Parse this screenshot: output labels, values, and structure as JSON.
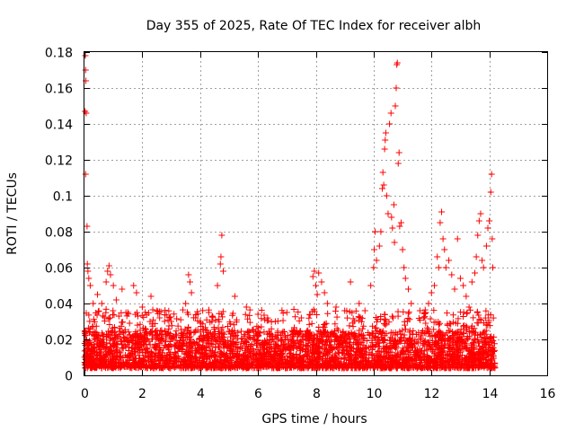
{
  "chart_data": {
    "type": "scatter",
    "title": "Day 355 of 2025, Rate Of TEC Index for receiver albh",
    "xlabel": "GPS time / hours",
    "ylabel": "ROTI / TECUs",
    "xlim": [
      0,
      16
    ],
    "ylim": [
      0,
      0.18
    ],
    "xticks": [
      0,
      2,
      4,
      6,
      8,
      10,
      12,
      14,
      16
    ],
    "xtick_labels": [
      "0",
      "2",
      "4",
      "6",
      "8",
      "10",
      "12",
      "14",
      "16"
    ],
    "yticks": [
      0,
      0.02,
      0.04,
      0.06,
      0.08,
      0.1,
      0.12,
      0.14,
      0.16,
      0.18
    ],
    "ytick_labels": [
      "0",
      "0.02",
      "0.04",
      "0.06",
      "0.08",
      "0.1",
      "0.12",
      "0.14",
      "0.16",
      "0.18"
    ],
    "grid": true,
    "marker": "+",
    "color": "#ff0000",
    "baseline": {
      "x_range": [
        0,
        14.2
      ],
      "typical_range": [
        0.004,
        0.025
      ],
      "point_density_per_hour": 260
    },
    "series": [
      {
        "name": "ROTI",
        "points": [
          [
            0.03,
            0.178
          ],
          [
            0.04,
            0.17
          ],
          [
            0.05,
            0.164
          ],
          [
            0.02,
            0.147
          ],
          [
            0.06,
            0.146
          ],
          [
            0.04,
            0.112
          ],
          [
            0.09,
            0.083
          ],
          [
            0.1,
            0.062
          ],
          [
            0.12,
            0.058
          ],
          [
            0.15,
            0.054
          ],
          [
            0.2,
            0.05
          ],
          [
            0.3,
            0.04
          ],
          [
            0.45,
            0.045
          ],
          [
            0.6,
            0.04
          ],
          [
            0.75,
            0.052
          ],
          [
            0.8,
            0.058
          ],
          [
            0.85,
            0.061
          ],
          [
            0.9,
            0.056
          ],
          [
            1.0,
            0.05
          ],
          [
            1.1,
            0.042
          ],
          [
            1.3,
            0.048
          ],
          [
            1.5,
            0.035
          ],
          [
            1.7,
            0.05
          ],
          [
            1.8,
            0.046
          ],
          [
            2.0,
            0.038
          ],
          [
            2.3,
            0.044
          ],
          [
            2.6,
            0.032
          ],
          [
            3.0,
            0.03
          ],
          [
            3.5,
            0.04
          ],
          [
            3.6,
            0.056
          ],
          [
            3.65,
            0.052
          ],
          [
            3.7,
            0.046
          ],
          [
            4.0,
            0.03
          ],
          [
            4.3,
            0.035
          ],
          [
            4.6,
            0.05
          ],
          [
            4.7,
            0.062
          ],
          [
            4.72,
            0.066
          ],
          [
            4.75,
            0.078
          ],
          [
            4.8,
            0.058
          ],
          [
            5.2,
            0.044
          ],
          [
            5.6,
            0.038
          ],
          [
            6.0,
            0.034
          ],
          [
            6.6,
            0.03
          ],
          [
            7.0,
            0.035
          ],
          [
            7.5,
            0.032
          ],
          [
            7.9,
            0.055
          ],
          [
            7.95,
            0.058
          ],
          [
            8.0,
            0.05
          ],
          [
            8.05,
            0.045
          ],
          [
            8.1,
            0.057
          ],
          [
            8.2,
            0.052
          ],
          [
            8.3,
            0.046
          ],
          [
            8.4,
            0.04
          ],
          [
            8.7,
            0.038
          ],
          [
            9.0,
            0.036
          ],
          [
            9.2,
            0.052
          ],
          [
            9.5,
            0.04
          ],
          [
            9.7,
            0.036
          ],
          [
            9.9,
            0.05
          ],
          [
            10.0,
            0.06
          ],
          [
            10.02,
            0.07
          ],
          [
            10.05,
            0.08
          ],
          [
            10.1,
            0.064
          ],
          [
            10.2,
            0.072
          ],
          [
            10.25,
            0.08
          ],
          [
            10.3,
            0.104
          ],
          [
            10.32,
            0.113
          ],
          [
            10.35,
            0.106
          ],
          [
            10.38,
            0.126
          ],
          [
            10.4,
            0.131
          ],
          [
            10.42,
            0.135
          ],
          [
            10.45,
            0.1
          ],
          [
            10.5,
            0.09
          ],
          [
            10.55,
            0.14
          ],
          [
            10.6,
            0.146
          ],
          [
            10.62,
            0.088
          ],
          [
            10.65,
            0.082
          ],
          [
            10.7,
            0.095
          ],
          [
            10.72,
            0.074
          ],
          [
            10.75,
            0.15
          ],
          [
            10.78,
            0.16
          ],
          [
            10.8,
            0.173
          ],
          [
            10.82,
            0.174
          ],
          [
            10.85,
            0.118
          ],
          [
            10.88,
            0.124
          ],
          [
            10.9,
            0.083
          ],
          [
            10.95,
            0.085
          ],
          [
            11.0,
            0.07
          ],
          [
            11.05,
            0.06
          ],
          [
            11.1,
            0.054
          ],
          [
            11.2,
            0.048
          ],
          [
            11.3,
            0.04
          ],
          [
            11.6,
            0.036
          ],
          [
            11.9,
            0.04
          ],
          [
            12.0,
            0.046
          ],
          [
            12.1,
            0.05
          ],
          [
            12.2,
            0.066
          ],
          [
            12.25,
            0.06
          ],
          [
            12.3,
            0.085
          ],
          [
            12.35,
            0.091
          ],
          [
            12.4,
            0.076
          ],
          [
            12.45,
            0.07
          ],
          [
            12.5,
            0.06
          ],
          [
            12.6,
            0.064
          ],
          [
            12.7,
            0.056
          ],
          [
            12.8,
            0.048
          ],
          [
            12.9,
            0.076
          ],
          [
            13.0,
            0.054
          ],
          [
            13.1,
            0.05
          ],
          [
            13.2,
            0.044
          ],
          [
            13.3,
            0.038
          ],
          [
            13.4,
            0.052
          ],
          [
            13.5,
            0.057
          ],
          [
            13.55,
            0.066
          ],
          [
            13.6,
            0.078
          ],
          [
            13.65,
            0.086
          ],
          [
            13.7,
            0.09
          ],
          [
            13.75,
            0.064
          ],
          [
            13.8,
            0.06
          ],
          [
            13.9,
            0.072
          ],
          [
            13.95,
            0.082
          ],
          [
            14.0,
            0.086
          ],
          [
            14.05,
            0.102
          ],
          [
            14.08,
            0.112
          ],
          [
            14.1,
            0.076
          ],
          [
            14.12,
            0.06
          ]
        ]
      }
    ]
  }
}
